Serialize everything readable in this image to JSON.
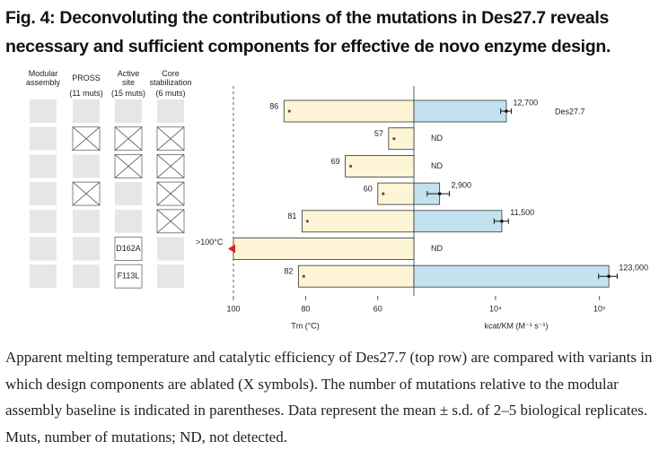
{
  "title": "Fig. 4: Deconvoluting the contributions of the mutations in Des27.7 reveals necessary and sufficient components for effective de novo enzyme design.",
  "design_table": {
    "columns": [
      {
        "name": "Modular assembly"
      },
      {
        "name": "PROSS",
        "muts": "(11 muts)"
      },
      {
        "name": "Active site",
        "muts": "(15 muts)"
      },
      {
        "name": "Core stabilization",
        "muts": "(6 muts)"
      }
    ],
    "rows": [
      {
        "ablated": [
          false,
          false,
          false,
          false
        ]
      },
      {
        "ablated": [
          false,
          true,
          true,
          true
        ]
      },
      {
        "ablated": [
          false,
          false,
          true,
          true
        ]
      },
      {
        "ablated": [
          false,
          true,
          false,
          true
        ]
      },
      {
        "ablated": [
          false,
          false,
          false,
          true
        ]
      },
      {
        "ablated": [
          false,
          false,
          false,
          false
        ],
        "label": "D162A"
      },
      {
        "ablated": [
          false,
          false,
          false,
          false
        ],
        "label": "F113L"
      }
    ]
  },
  "chart_data": [
    {
      "type": "bar",
      "orientation": "horizontal",
      "xlabel": "Tm (°C)",
      "values": [
        86,
        57,
        69,
        60,
        81,
        100,
        82
      ],
      "value_labels": [
        "86",
        "57",
        "69",
        "60",
        "81",
        ">100°C",
        "82"
      ],
      "color": "#fdf5d6",
      "xlim": [
        100,
        50
      ],
      "xticks": [
        100,
        80,
        60
      ]
    },
    {
      "type": "bar",
      "orientation": "horizontal",
      "xlabel": "kcat/KM (M⁻¹ s⁻¹)",
      "log_scale": true,
      "values": [
        12700,
        null,
        null,
        2900,
        11500,
        null,
        123000
      ],
      "errors": [
        1500,
        null,
        null,
        700,
        1800,
        null,
        25000
      ],
      "value_labels": [
        "12,700",
        "ND",
        "ND",
        "2,900",
        "11,500",
        "ND",
        "123,000"
      ],
      "annotation": "Des27.7",
      "color": "#c3e2ef",
      "xlim": [
        1640,
        190000
      ],
      "xticks": [
        {
          "value": 10000,
          "label": "10⁴"
        },
        {
          "value": 100000,
          "label": "10⁵"
        }
      ]
    }
  ],
  "caption": "Apparent melting temperature and catalytic efficiency of Des27.7 (top row) are compared with variants in which design components are ablated (X symbols). The number of mutations relative to the modular assembly baseline is indicated in parentheses. Data represent the mean ± s.d. of 2–5 biological replicates. Muts, number of mutations; ND, not detected."
}
